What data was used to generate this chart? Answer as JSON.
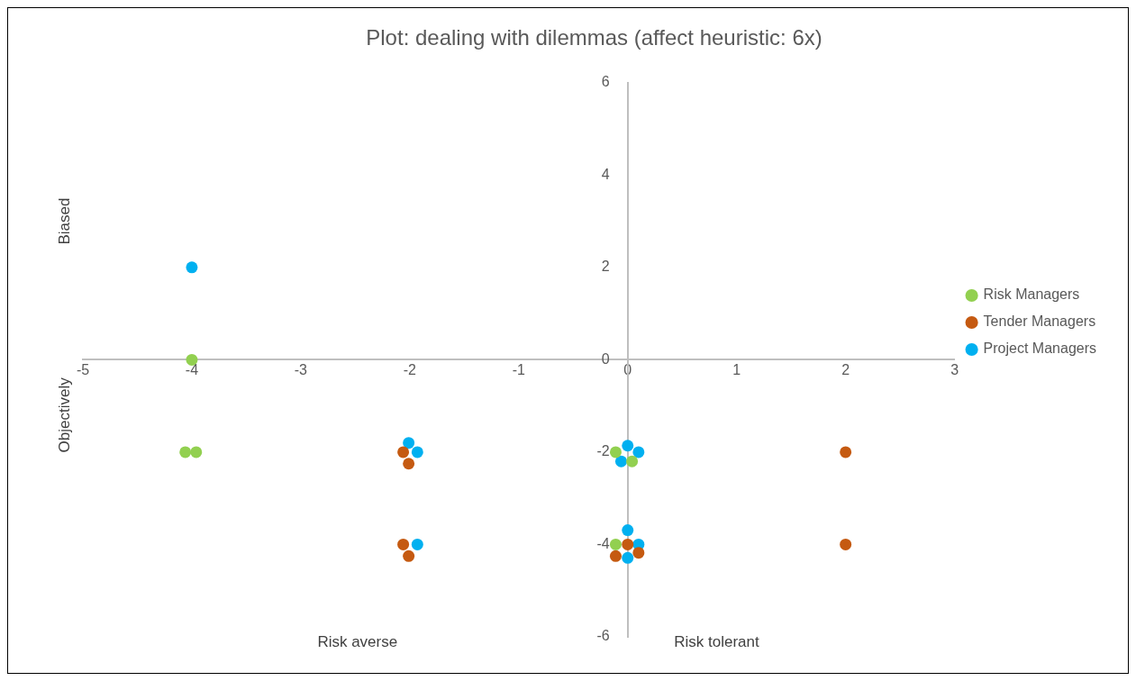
{
  "chart_data": {
    "type": "scatter",
    "title": "Plot: dealing with dilemmas (affect heuristic: 6x)",
    "annotations": [
      "Biased",
      "Objectively",
      "Risk averse",
      "Risk tolerant"
    ],
    "series": [
      {
        "name": "Risk Managers",
        "color": "#92d050",
        "x": [
          -4,
          -4.06,
          -3.96,
          -0.11,
          0.04,
          -0.11
        ],
        "values": [
          0,
          -2,
          -2,
          -2,
          -2.2,
          -4
        ]
      },
      {
        "name": "Tender Managers",
        "color": "#c55a11",
        "x": [
          -2.06,
          -2.01,
          -2.06,
          -2.01,
          0,
          -0.11,
          0.1,
          2,
          2
        ],
        "values": [
          -2,
          -2.25,
          -4,
          -4.25,
          -4,
          -4.25,
          -4.18,
          -2,
          -4
        ]
      },
      {
        "name": "Project Managers",
        "color": "#00b0f0",
        "x": [
          -4,
          -2.01,
          -1.93,
          -1.93,
          0,
          0.1,
          -0.06,
          0,
          0.1,
          0
        ],
        "values": [
          2,
          -1.8,
          -2,
          -4,
          -1.86,
          -2,
          -2.2,
          -3.69,
          -4,
          -4.29
        ]
      }
    ],
    "xlim": [
      -5,
      3
    ],
    "xticks": [
      -5,
      -4,
      -3,
      -2,
      -1,
      0,
      1,
      2,
      3
    ],
    "ylim": [
      -6,
      6
    ],
    "yticks": [
      -6,
      -4,
      -2,
      0,
      2,
      4,
      6
    ],
    "grid": false,
    "legend": "right",
    "marker": "circle"
  }
}
